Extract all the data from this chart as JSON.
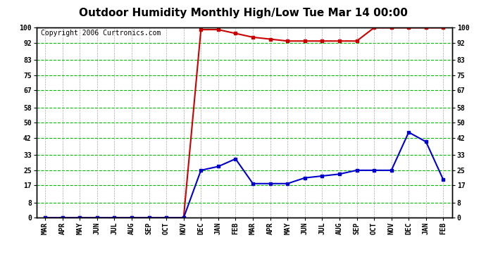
{
  "title": "Outdoor Humidity Monthly High/Low Tue Mar 14 00:00",
  "copyright": "Copyright 2006 Curtronics.com",
  "x_labels": [
    "MAR",
    "APR",
    "MAY",
    "JUN",
    "JUL",
    "AUG",
    "SEP",
    "OCT",
    "NOV",
    "DEC",
    "JAN",
    "FEB",
    "MAR",
    "APR",
    "MAY",
    "JUN",
    "JUL",
    "AUG",
    "SEP",
    "OCT",
    "NOV",
    "DEC",
    "JAN",
    "FEB"
  ],
  "high_values": [
    0,
    0,
    0,
    0,
    0,
    0,
    0,
    0,
    0,
    99,
    99,
    97,
    95,
    94,
    93,
    93,
    93,
    93,
    93,
    100,
    100,
    100,
    100,
    100
  ],
  "low_values": [
    0,
    0,
    0,
    0,
    0,
    0,
    0,
    0,
    0,
    25,
    27,
    31,
    18,
    18,
    18,
    21,
    22,
    23,
    25,
    25,
    25,
    45,
    40,
    20
  ],
  "ylim": [
    0,
    100
  ],
  "yticks": [
    0,
    8,
    17,
    25,
    33,
    42,
    50,
    58,
    67,
    75,
    83,
    92,
    100
  ],
  "high_color": "#cc0000",
  "low_color": "#0000cc",
  "bg_color": "#ffffff",
  "grid_h_color": "#00bb00",
  "grid_v_color": "#aaaaaa",
  "plot_bg": "#ffffff",
  "title_fontsize": 11,
  "copyright_fontsize": 7,
  "tick_fontsize": 7
}
